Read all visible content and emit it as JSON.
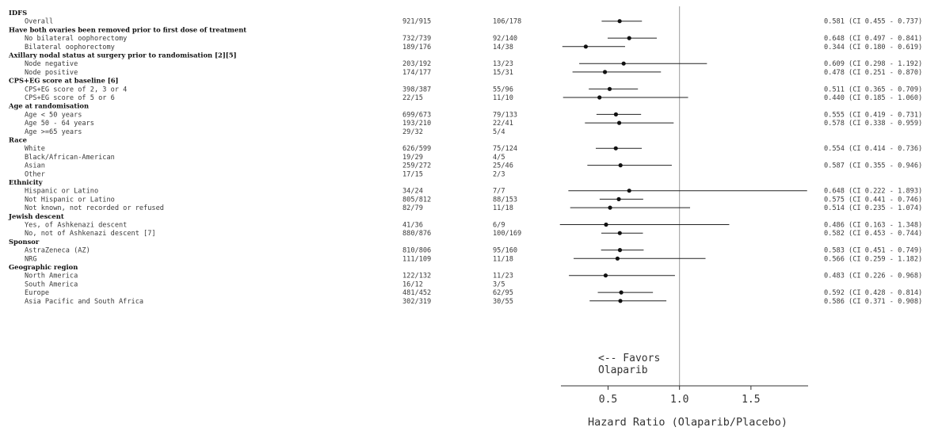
{
  "chart_data": {
    "type": "forest",
    "xlabel": "Hazard Ratio (Olaparib/Placebo)",
    "xticks": [
      0.5,
      1.0,
      1.5
    ],
    "xtick_labels": [
      "0.5",
      "1.0",
      "1.5"
    ],
    "xlim": [
      0.17,
      1.9
    ],
    "reference_line": 1.0,
    "annotation": [
      "<-- Favors",
      "Olaparib"
    ],
    "rows": [
      {
        "kind": "header",
        "label": "IDFS"
      },
      {
        "kind": "sub",
        "label": "Overall",
        "events_a": "921/915",
        "events_b": "106/178",
        "hr": 0.581,
        "lo": 0.455,
        "hi": 0.737,
        "ci_text": "0.581 (CI 0.455 - 0.737)"
      },
      {
        "kind": "header",
        "label": "Have both ovaries been removed prior to first dose of treatment"
      },
      {
        "kind": "sub",
        "label": "No bilateral oophorectomy",
        "events_a": "732/739",
        "events_b": "92/140",
        "hr": 0.648,
        "lo": 0.497,
        "hi": 0.841,
        "ci_text": "0.648 (CI 0.497 - 0.841)"
      },
      {
        "kind": "sub",
        "label": "Bilateral oophorectomy",
        "events_a": "189/176",
        "events_b": "14/38",
        "hr": 0.344,
        "lo": 0.18,
        "hi": 0.619,
        "ci_text": "0.344 (CI 0.180 - 0.619)"
      },
      {
        "kind": "header",
        "label": "Axillary nodal status at surgery prior to randomisation [2][5]"
      },
      {
        "kind": "sub",
        "label": "Node negative",
        "events_a": "203/192",
        "events_b": "13/23",
        "hr": 0.609,
        "lo": 0.298,
        "hi": 1.192,
        "ci_text": "0.609 (CI 0.298 - 1.192)"
      },
      {
        "kind": "sub",
        "label": "Node positive",
        "events_a": "174/177",
        "events_b": "15/31",
        "hr": 0.478,
        "lo": 0.251,
        "hi": 0.87,
        "ci_text": "0.478 (CI 0.251 - 0.870)"
      },
      {
        "kind": "header",
        "label": "CPS+EG score at baseline  [6]"
      },
      {
        "kind": "sub",
        "label": "CPS+EG score of 2, 3 or 4",
        "events_a": "398/387",
        "events_b": "55/96",
        "hr": 0.511,
        "lo": 0.365,
        "hi": 0.709,
        "ci_text": "0.511 (CI 0.365 - 0.709)"
      },
      {
        "kind": "sub",
        "label": "CPS+EG score of 5 or 6",
        "events_a": "22/15",
        "events_b": "11/10",
        "hr": 0.44,
        "lo": 0.185,
        "hi": 1.06,
        "ci_text": "0.440 (CI 0.185 - 1.060)"
      },
      {
        "kind": "header",
        "label": "Age at randomisation"
      },
      {
        "kind": "sub",
        "label": "Age < 50 years",
        "events_a": "699/673",
        "events_b": "79/133",
        "hr": 0.555,
        "lo": 0.419,
        "hi": 0.731,
        "ci_text": "0.555 (CI 0.419 - 0.731)"
      },
      {
        "kind": "sub",
        "label": "Age 50 - 64 years",
        "events_a": "193/210",
        "events_b": "22/41",
        "hr": 0.578,
        "lo": 0.338,
        "hi": 0.959,
        "ci_text": "0.578 (CI 0.338 - 0.959)"
      },
      {
        "kind": "sub",
        "label": "Age >=65 years",
        "events_a": "29/32",
        "events_b": "5/4"
      },
      {
        "kind": "header",
        "label": "Race"
      },
      {
        "kind": "sub",
        "label": "White",
        "events_a": "626/599",
        "events_b": "75/124",
        "hr": 0.554,
        "lo": 0.414,
        "hi": 0.736,
        "ci_text": "0.554 (CI 0.414 - 0.736)"
      },
      {
        "kind": "sub",
        "label": "Black/African-American",
        "events_a": "19/29",
        "events_b": "4/5"
      },
      {
        "kind": "sub",
        "label": "Asian",
        "events_a": "259/272",
        "events_b": "25/46",
        "hr": 0.587,
        "lo": 0.355,
        "hi": 0.946,
        "ci_text": "0.587 (CI 0.355 - 0.946)"
      },
      {
        "kind": "sub",
        "label": "Other",
        "events_a": "17/15",
        "events_b": "2/3"
      },
      {
        "kind": "header",
        "label": "Ethnicity"
      },
      {
        "kind": "sub",
        "label": "Hispanic or Latino",
        "events_a": "34/24",
        "events_b": "7/7",
        "hr": 0.648,
        "lo": 0.222,
        "hi": 1.893,
        "ci_text": "0.648 (CI 0.222 - 1.893)"
      },
      {
        "kind": "sub",
        "label": "Not Hispanic or Latino",
        "events_a": "805/812",
        "events_b": "88/153",
        "hr": 0.575,
        "lo": 0.441,
        "hi": 0.746,
        "ci_text": "0.575 (CI 0.441 - 0.746)"
      },
      {
        "kind": "sub",
        "label": "Not known, not recorded or refused",
        "events_a": "82/79",
        "events_b": "11/18",
        "hr": 0.514,
        "lo": 0.235,
        "hi": 1.074,
        "ci_text": "0.514 (CI 0.235 - 1.074)"
      },
      {
        "kind": "header",
        "label": "Jewish descent"
      },
      {
        "kind": "sub",
        "label": "Yes, of Ashkenazi descent",
        "events_a": "41/36",
        "events_b": "6/9",
        "hr": 0.486,
        "lo": 0.163,
        "hi": 1.348,
        "ci_text": "0.486 (CI 0.163 - 1.348)"
      },
      {
        "kind": "sub",
        "label": "No, not of Ashkenazi descent [7]",
        "events_a": "880/876",
        "events_b": "100/169",
        "hr": 0.582,
        "lo": 0.453,
        "hi": 0.744,
        "ci_text": "0.582 (CI 0.453 - 0.744)"
      },
      {
        "kind": "header",
        "label": "Sponsor"
      },
      {
        "kind": "sub",
        "label": "AstraZeneca (AZ)",
        "events_a": "810/806",
        "events_b": "95/160",
        "hr": 0.583,
        "lo": 0.451,
        "hi": 0.749,
        "ci_text": "0.583 (CI 0.451 - 0.749)"
      },
      {
        "kind": "sub",
        "label": "NRG",
        "events_a": "111/109",
        "events_b": "11/18",
        "hr": 0.566,
        "lo": 0.259,
        "hi": 1.182,
        "ci_text": "0.566 (CI 0.259 - 1.182)"
      },
      {
        "kind": "header",
        "label": "Geographic region"
      },
      {
        "kind": "sub",
        "label": "North America",
        "events_a": "122/132",
        "events_b": "11/23",
        "hr": 0.483,
        "lo": 0.226,
        "hi": 0.968,
        "ci_text": "0.483 (CI 0.226 - 0.968)"
      },
      {
        "kind": "sub",
        "label": "South America",
        "events_a": "16/12",
        "events_b": "3/5"
      },
      {
        "kind": "sub",
        "label": "Europe",
        "events_a": "481/452",
        "events_b": "62/95",
        "hr": 0.592,
        "lo": 0.428,
        "hi": 0.814,
        "ci_text": "0.592 (CI 0.428 - 0.814)"
      },
      {
        "kind": "sub",
        "label": "Asia Pacific and South Africa",
        "events_a": "302/319",
        "events_b": "30/55",
        "hr": 0.586,
        "lo": 0.371,
        "hi": 0.908,
        "ci_text": "0.586 (CI 0.371 - 0.908)"
      }
    ]
  }
}
